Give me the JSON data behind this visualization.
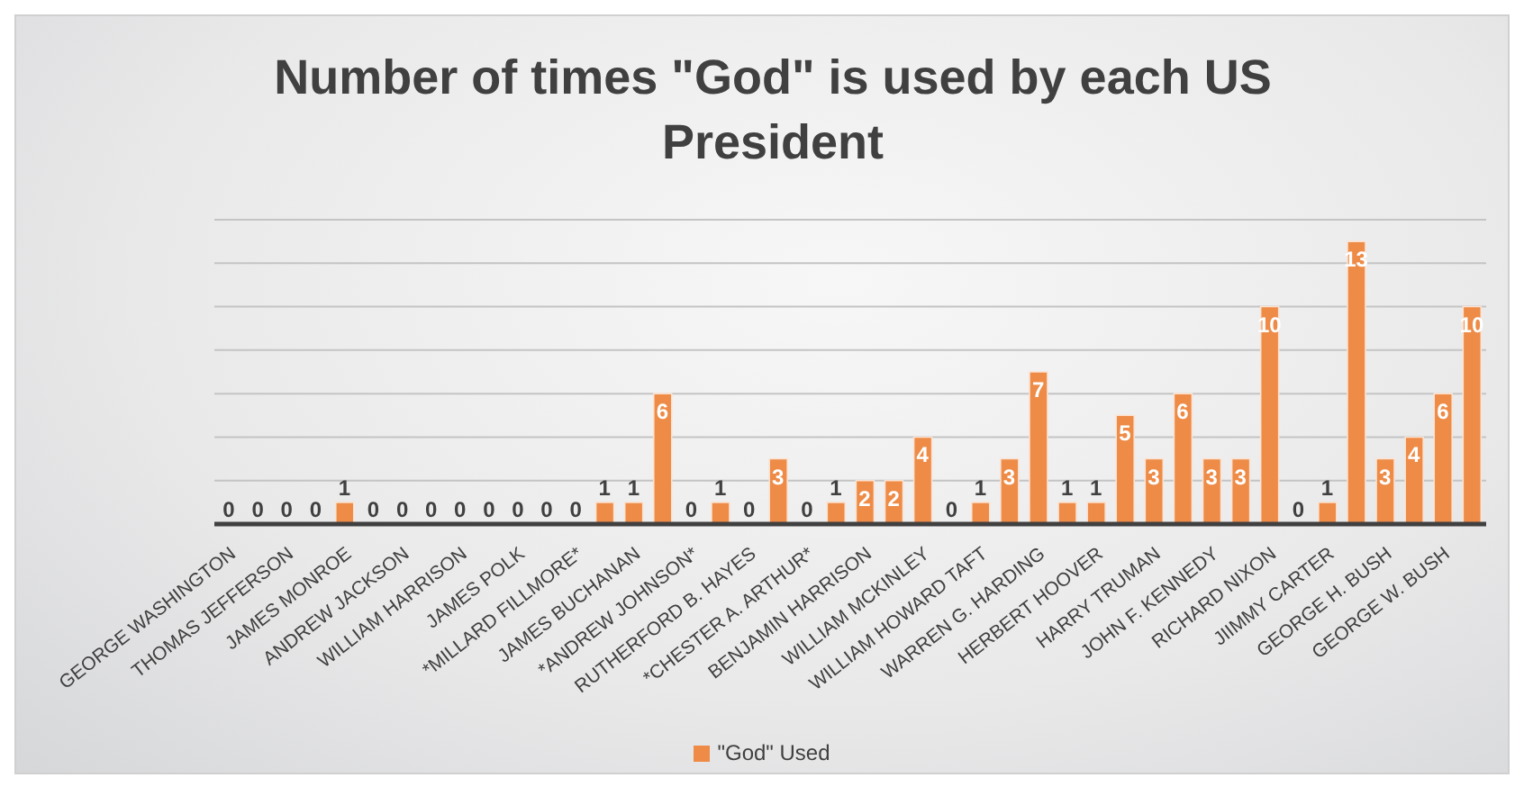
{
  "chart_data": {
    "type": "bar",
    "title": "Number of times \"God\" is used by each US President",
    "categories": [
      "GEORGE WASHINGTON",
      null,
      "THOMAS JEFFERSON",
      null,
      "JAMES MONROE",
      null,
      "ANDREW JACKSON",
      null,
      "WILLIAM HARRISON",
      null,
      "JAMES POLK",
      null,
      "*MILLARD FILLMORE*",
      null,
      "JAMES BUCHANAN",
      null,
      "*ANDREW JOHNSON*",
      null,
      "RUTHERFORD B. HAYES",
      null,
      "*CHESTER A. ARTHUR*",
      null,
      "BENJAMIN HARRISON",
      null,
      "WILLIAM MCKINLEY",
      null,
      "WILLIAM HOWARD TAFT",
      null,
      "WARREN G. HARDING",
      null,
      "HERBERT HOOVER",
      null,
      "HARRY TRUMAN",
      null,
      "JOHN F. KENNEDY",
      null,
      "RICHARD NIXON",
      null,
      "JIIMMY CARTER",
      null,
      "GEORGE H. BUSH",
      null,
      "GEORGE W. BUSH",
      null
    ],
    "series": [
      {
        "name": "\"God\" Used",
        "color": "#ed8b47",
        "values": [
          0,
          0,
          0,
          0,
          1,
          0,
          0,
          0,
          0,
          0,
          0,
          0,
          0,
          1,
          1,
          6,
          0,
          1,
          0,
          3,
          0,
          1,
          2,
          2,
          4,
          0,
          1,
          3,
          7,
          1,
          1,
          5,
          3,
          6,
          3,
          3,
          10,
          0,
          1,
          13,
          3,
          4,
          6,
          10
        ]
      }
    ],
    "ylim": [
      0,
      14
    ],
    "yticks": [
      {
        "value": 0,
        "label": null
      },
      {
        "value": 2,
        "label": null
      },
      {
        "value": 4,
        "label": null
      },
      {
        "value": 6,
        "label": null
      },
      {
        "value": 8,
        "label": null
      },
      {
        "value": 10,
        "label": null
      },
      {
        "value": 12,
        "label": null
      },
      {
        "value": 14,
        "label": null
      }
    ],
    "tick_labels": "x",
    "grid": "y",
    "legend": "bottom",
    "data_labels": true
  }
}
